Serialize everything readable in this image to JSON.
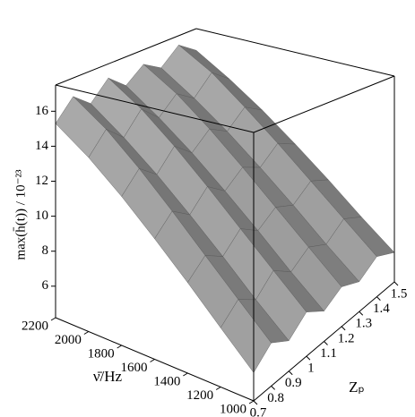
{
  "chart_data": {
    "type": "surface",
    "zlabel": "max(h̄(t)) / 10⁻²³",
    "xlabel": "ν̄/Hz",
    "ylabel": "Zₚ",
    "x": [
      1000,
      1200,
      1400,
      1600,
      1800,
      2000,
      2200
    ],
    "y": [
      0.7,
      0.8,
      0.9,
      1,
      1.1,
      1.2,
      1.3,
      1.4,
      1.5
    ],
    "values": [
      [
        5.6,
        6.4,
        5.8,
        6.6,
        5.9,
        6.5,
        6.0,
        6.7,
        6.1
      ],
      [
        7.2,
        8.0,
        7.3,
        8.2,
        7.4,
        8.1,
        7.5,
        8.3,
        7.6
      ],
      [
        8.9,
        9.7,
        9.0,
        9.9,
        9.1,
        9.8,
        9.2,
        10.0,
        9.3
      ],
      [
        10.6,
        11.5,
        10.7,
        11.7,
        10.8,
        11.6,
        10.9,
        11.8,
        11.0
      ],
      [
        12.3,
        13.3,
        12.4,
        13.5,
        12.5,
        13.4,
        12.6,
        13.6,
        12.7
      ],
      [
        13.9,
        15.0,
        14.0,
        15.2,
        14.1,
        15.1,
        14.2,
        15.4,
        14.3
      ],
      [
        15.3,
        16.4,
        15.5,
        16.6,
        15.6,
        16.5,
        15.7,
        16.8,
        15.8
      ]
    ],
    "xlim": [
      1000,
      2200
    ],
    "xticks": [
      1000,
      1200,
      1400,
      1600,
      1800,
      2000,
      2200
    ],
    "ylim": [
      0.7,
      1.5
    ],
    "yticks": [
      0.7,
      0.8,
      0.9,
      1,
      1.1,
      1.2,
      1.3,
      1.4,
      1.5
    ],
    "zlim": [
      4.2,
      17.5
    ],
    "zticks": [
      6,
      8,
      10,
      12,
      14,
      16
    ],
    "color": "#9a9a9a"
  }
}
